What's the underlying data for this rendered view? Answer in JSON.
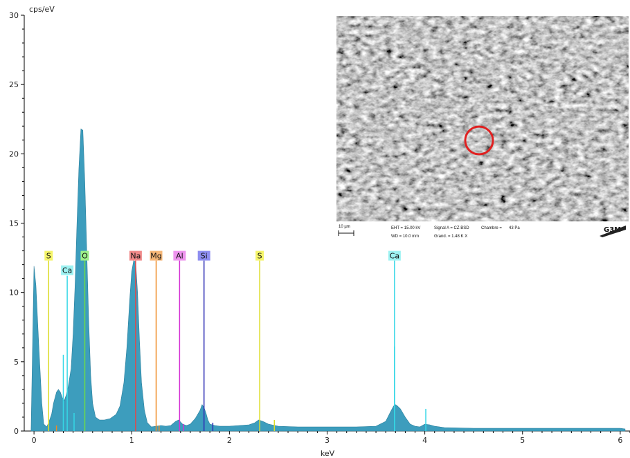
{
  "chart_data": {
    "type": "area",
    "ylabel": "cps/eV",
    "xlabel": "keV",
    "xlim": [
      -0.1,
      6.1
    ],
    "ylim": [
      0,
      30
    ],
    "xticks": [
      0,
      1,
      2,
      3,
      4,
      5,
      6
    ],
    "yticks": [
      0,
      5,
      10,
      15,
      20,
      25,
      30
    ],
    "fill_color": "#3d9dbd",
    "spectrum": {
      "x": [
        -0.03,
        0.0,
        0.02,
        0.05,
        0.08,
        0.1,
        0.13,
        0.15,
        0.18,
        0.2,
        0.23,
        0.25,
        0.27,
        0.29,
        0.31,
        0.33,
        0.35,
        0.38,
        0.4,
        0.42,
        0.44,
        0.46,
        0.48,
        0.5,
        0.52,
        0.54,
        0.56,
        0.58,
        0.6,
        0.63,
        0.67,
        0.72,
        0.78,
        0.84,
        0.88,
        0.92,
        0.95,
        0.98,
        1.0,
        1.02,
        1.04,
        1.06,
        1.08,
        1.1,
        1.13,
        1.16,
        1.2,
        1.25,
        1.3,
        1.35,
        1.4,
        1.45,
        1.48,
        1.52,
        1.56,
        1.6,
        1.65,
        1.7,
        1.72,
        1.74,
        1.76,
        1.78,
        1.8,
        1.85,
        1.9,
        2.0,
        2.1,
        2.2,
        2.26,
        2.3,
        2.34,
        2.4,
        2.5,
        2.7,
        3.0,
        3.3,
        3.5,
        3.6,
        3.65,
        3.68,
        3.7,
        3.72,
        3.75,
        3.8,
        3.85,
        3.9,
        3.95,
        4.0,
        4.05,
        4.1,
        4.2,
        4.5,
        5.0,
        5.5,
        6.0,
        6.05
      ],
      "y": [
        0.1,
        11.9,
        10.5,
        6.0,
        2.0,
        0.5,
        0.3,
        0.6,
        1.2,
        2.0,
        2.8,
        3.0,
        2.8,
        2.4,
        2.2,
        2.6,
        3.2,
        4.5,
        7.0,
        10.5,
        15.0,
        19.0,
        21.8,
        21.7,
        18.0,
        13.0,
        8.0,
        4.0,
        2.0,
        1.0,
        0.8,
        0.8,
        0.9,
        1.2,
        1.8,
        3.5,
        6.0,
        9.5,
        11.5,
        12.3,
        12.2,
        10.0,
        6.5,
        3.5,
        1.5,
        0.6,
        0.3,
        0.35,
        0.4,
        0.35,
        0.4,
        0.7,
        0.8,
        0.5,
        0.4,
        0.5,
        0.9,
        1.5,
        1.9,
        1.7,
        1.3,
        0.8,
        0.5,
        0.4,
        0.35,
        0.35,
        0.4,
        0.45,
        0.6,
        0.8,
        0.7,
        0.5,
        0.35,
        0.3,
        0.3,
        0.3,
        0.35,
        0.7,
        1.4,
        1.8,
        1.9,
        1.8,
        1.6,
        1.0,
        0.5,
        0.35,
        0.3,
        0.5,
        0.45,
        0.35,
        0.25,
        0.2,
        0.2,
        0.2,
        0.2,
        0.15
      ]
    },
    "element_lines": [
      {
        "label": "S",
        "x": 0.15,
        "y_top": 12.3,
        "color": "#dcdc28",
        "label_bg": "#f5f56a"
      },
      {
        "label": "Ca",
        "x": 0.34,
        "y_top": 11.2,
        "color": "#35d7e6",
        "label_bg": "#9ef2f2"
      },
      {
        "label": "O",
        "x": 0.52,
        "y_top": 12.3,
        "color": "#6ddc4a",
        "label_bg": "#9df08a"
      },
      {
        "label": "Na",
        "x": 1.04,
        "y_top": 12.3,
        "color": "#e04a4a",
        "label_bg": "#f08a8a"
      },
      {
        "label": "Mg",
        "x": 1.25,
        "y_top": 12.3,
        "color": "#ef8a22",
        "label_bg": "#f6b778"
      },
      {
        "label": "Al",
        "x": 1.49,
        "y_top": 12.3,
        "color": "#d432d4",
        "label_bg": "#ee94ee"
      },
      {
        "label": "Si",
        "x": 1.74,
        "y_top": 12.3,
        "color": "#2f2fb4",
        "label_bg": "#8e8ef0"
      },
      {
        "label": "S",
        "x": 2.31,
        "y_top": 12.3,
        "color": "#dcdc28",
        "label_bg": "#f5f56a"
      },
      {
        "label": "Ca",
        "x": 3.69,
        "y_top": 12.3,
        "color": "#35d7e6",
        "label_bg": "#9ef2f2"
      }
    ],
    "minor_lines": [
      {
        "x": 0.23,
        "y": 0.4,
        "color": "#ef8a22"
      },
      {
        "x": 0.3,
        "y": 5.5,
        "color": "#35d7e6"
      },
      {
        "x": 0.41,
        "y": 1.3,
        "color": "#35d7e6"
      },
      {
        "x": 1.28,
        "y": 0.4,
        "color": "#ef8a22"
      },
      {
        "x": 1.53,
        "y": 0.5,
        "color": "#d432d4"
      },
      {
        "x": 1.83,
        "y": 0.6,
        "color": "#2f2fb4"
      },
      {
        "x": 2.46,
        "y": 0.8,
        "color": "#dcdc28"
      },
      {
        "x": 3.69,
        "y": 6.1,
        "color": "#35d7e6"
      },
      {
        "x": 4.01,
        "y": 1.6,
        "color": "#35d7e6"
      }
    ]
  },
  "inset": {
    "scalebar": "10 µm",
    "eht": "EHT = 15.00 kV",
    "wd": "WD = 10.0 mm",
    "signal": "Signal A = CZ BSD",
    "grand": "Grand. = 1.48 K X",
    "chambre": "Chambre =",
    "pressure": "43 Pa",
    "logo": "G3M",
    "marker_color": "#e02020"
  }
}
